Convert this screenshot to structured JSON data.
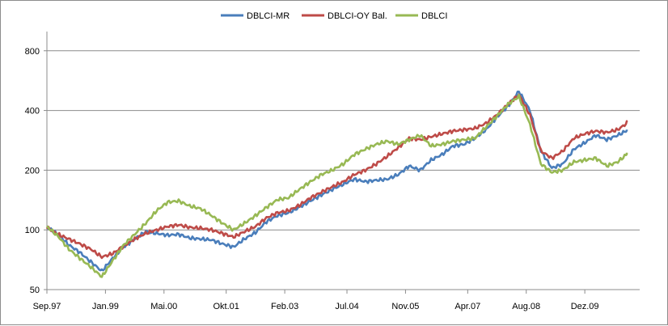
{
  "chart_data": {
    "type": "line",
    "title": "",
    "xlabel": "",
    "ylabel": "",
    "y_scale": "log",
    "ylim": [
      50,
      1000
    ],
    "y_ticks": [
      50,
      100,
      200,
      400,
      800
    ],
    "y_tick_labels": [
      "50",
      "100",
      "200",
      "400",
      "800"
    ],
    "x_tick_labels": [
      "Sep.97",
      "Jan.99",
      "Mai.00",
      "Okt.01",
      "Feb.03",
      "Jul.04",
      "Nov.05",
      "Apr.07",
      "Aug.08",
      "Dez.09"
    ],
    "x_ticks": [
      "1997-09",
      "1999-01",
      "2000-05",
      "2001-10",
      "2003-02",
      "2004-07",
      "2005-11",
      "2007-04",
      "2008-08",
      "2009-12"
    ],
    "xlim": [
      "1997-09",
      "2011-03"
    ],
    "grid": "horizontal",
    "legend_position": "top",
    "dates": [
      "1997-09",
      "1997-12",
      "1998-03",
      "1998-06",
      "1998-09",
      "1998-12",
      "1999-03",
      "1999-06",
      "1999-09",
      "1999-12",
      "2000-03",
      "2000-06",
      "2000-09",
      "2000-12",
      "2001-03",
      "2001-06",
      "2001-09",
      "2001-12",
      "2002-03",
      "2002-06",
      "2002-09",
      "2002-12",
      "2003-03",
      "2003-06",
      "2003-09",
      "2003-12",
      "2004-03",
      "2004-06",
      "2004-09",
      "2004-12",
      "2005-03",
      "2005-06",
      "2005-09",
      "2005-12",
      "2006-03",
      "2006-06",
      "2006-09",
      "2006-12",
      "2007-03",
      "2007-06",
      "2007-09",
      "2007-12",
      "2008-03",
      "2008-06",
      "2008-09",
      "2008-12",
      "2009-03",
      "2009-06",
      "2009-09",
      "2009-12",
      "2010-03",
      "2010-06",
      "2010-09",
      "2010-12"
    ],
    "series": [
      {
        "name": "DBLCI-MR",
        "color": "#4a7ebb",
        "values": [
          103,
          95,
          84,
          77,
          69,
          62,
          72,
          82,
          90,
          98,
          96,
          94,
          95,
          91,
          90,
          89,
          85,
          82,
          90,
          97,
          110,
          118,
          122,
          130,
          140,
          150,
          160,
          170,
          180,
          175,
          178,
          180,
          190,
          210,
          200,
          225,
          240,
          265,
          270,
          290,
          320,
          370,
          420,
          500,
          400,
          250,
          205,
          215,
          255,
          275,
          300,
          285,
          300,
          320
        ]
      },
      {
        "name": "DBLCI-OY Bal.",
        "color": "#be4b48",
        "values": [
          103,
          95,
          90,
          85,
          80,
          73,
          76,
          83,
          90,
          96,
          100,
          104,
          106,
          103,
          102,
          100,
          96,
          92,
          98,
          104,
          115,
          122,
          125,
          133,
          145,
          155,
          165,
          175,
          190,
          200,
          215,
          235,
          260,
          290,
          285,
          295,
          305,
          315,
          320,
          325,
          345,
          380,
          430,
          480,
          380,
          250,
          230,
          250,
          290,
          305,
          315,
          310,
          320,
          350
        ]
      },
      {
        "name": "DBLCI",
        "color": "#98b954",
        "values": [
          104,
          93,
          80,
          72,
          65,
          58,
          70,
          84,
          95,
          108,
          125,
          138,
          140,
          132,
          128,
          118,
          108,
          100,
          108,
          118,
          130,
          142,
          145,
          160,
          175,
          190,
          200,
          215,
          240,
          255,
          270,
          280,
          270,
          285,
          300,
          265,
          270,
          280,
          285,
          290,
          330,
          375,
          430,
          470,
          340,
          215,
          195,
          200,
          220,
          225,
          230,
          210,
          220,
          245
        ]
      }
    ]
  }
}
